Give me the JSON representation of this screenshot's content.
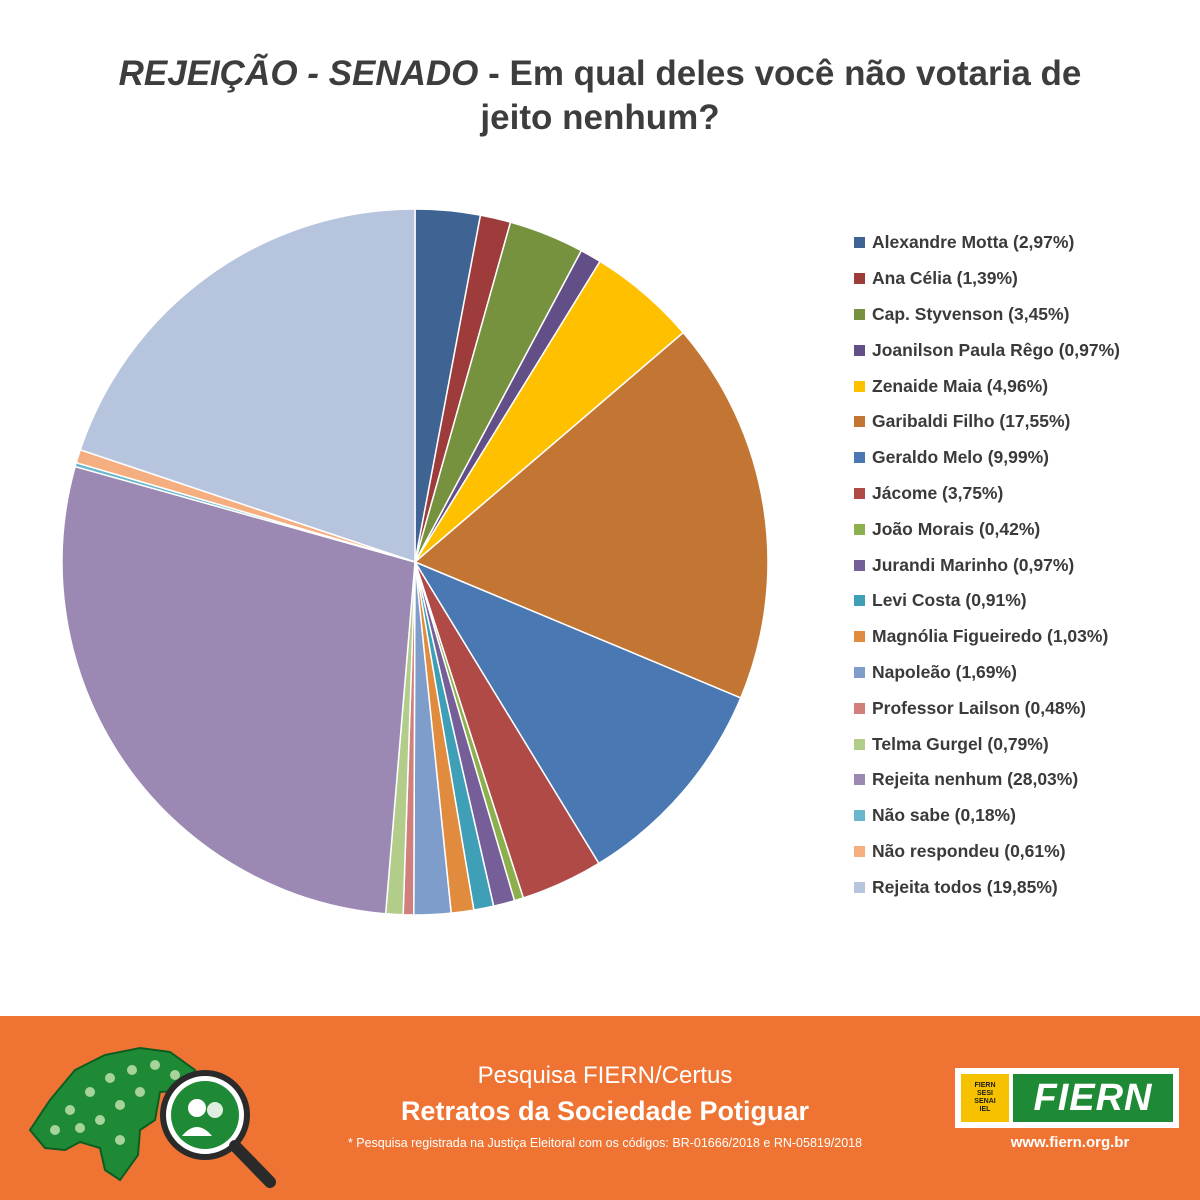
{
  "title": {
    "italic_part": "REJEIÇÃO - SENADO",
    "rest": " - Em qual deles você não votaria de jeito nenhum?"
  },
  "chart_data": {
    "type": "pie",
    "title": "REJEIÇÃO - SENADO - Em qual deles você não votaria de jeito nenhum?",
    "legend_position": "right",
    "slices": [
      {
        "label": "Alexandre Motta (2,97%)",
        "value": 2.97,
        "color": "#3f6494"
      },
      {
        "label": "Ana Célia (1,39%)",
        "value": 1.39,
        "color": "#9e3b3b"
      },
      {
        "label": "Cap. Styvenson (3,45%)",
        "value": 3.45,
        "color": "#77923e"
      },
      {
        "label": "Joanilson Paula Rêgo (0,97%)",
        "value": 0.97,
        "color": "#634f88"
      },
      {
        "label": "Zenaide Maia (4,96%)",
        "value": 4.96,
        "color": "#ffc000"
      },
      {
        "label": "Garibaldi Filho (17,55%)",
        "value": 17.55,
        "color": "#c37633"
      },
      {
        "label": "Geraldo Melo (9,99%)",
        "value": 9.99,
        "color": "#4a78b2"
      },
      {
        "label": "Jácome (3,75%)",
        "value": 3.75,
        "color": "#b04a47"
      },
      {
        "label": "João Morais (0,42%)",
        "value": 0.42,
        "color": "#8db04f"
      },
      {
        "label": "Jurandi Marinho (0,97%)",
        "value": 0.97,
        "color": "#765e99"
      },
      {
        "label": "Levi Costa (0,91%)",
        "value": 0.91,
        "color": "#3f9fb6"
      },
      {
        "label": "Magnólia Figueiredo (1,03%)",
        "value": 1.03,
        "color": "#e08b3e"
      },
      {
        "label": "Napoleão (1,69%)",
        "value": 1.69,
        "color": "#7e9dcb"
      },
      {
        "label": "Professor Lailson (0,48%)",
        "value": 0.48,
        "color": "#d07f7d"
      },
      {
        "label": "Telma Gurgel (0,79%)",
        "value": 0.79,
        "color": "#b2cc8a"
      },
      {
        "label": "Rejeita nenhum (28,03%)",
        "value": 28.03,
        "color": "#9b89b4"
      },
      {
        "label": "Não sabe (0,18%)",
        "value": 0.18,
        "color": "#6ab6cc"
      },
      {
        "label": "Não respondeu (0,61%)",
        "value": 0.61,
        "color": "#f5ae7f"
      },
      {
        "label": "Rejeita todos (19,85%)",
        "value": 19.85,
        "color": "#b7c4dd"
      }
    ]
  },
  "footer": {
    "line1": "Pesquisa FIERN/Certus",
    "line2": "Retratos da Sociedade Potiguar",
    "note": "* Pesquisa registrada na Justiça Eleitoral com os códigos: BR-01666/2018 e RN-05819/2018",
    "logo_small_lines": [
      "FIERN",
      "SESI",
      "SENAI",
      "IEL"
    ],
    "logo_text": "FIERN",
    "url": "www.fiern.org.br",
    "background_color": "#ef7433"
  }
}
